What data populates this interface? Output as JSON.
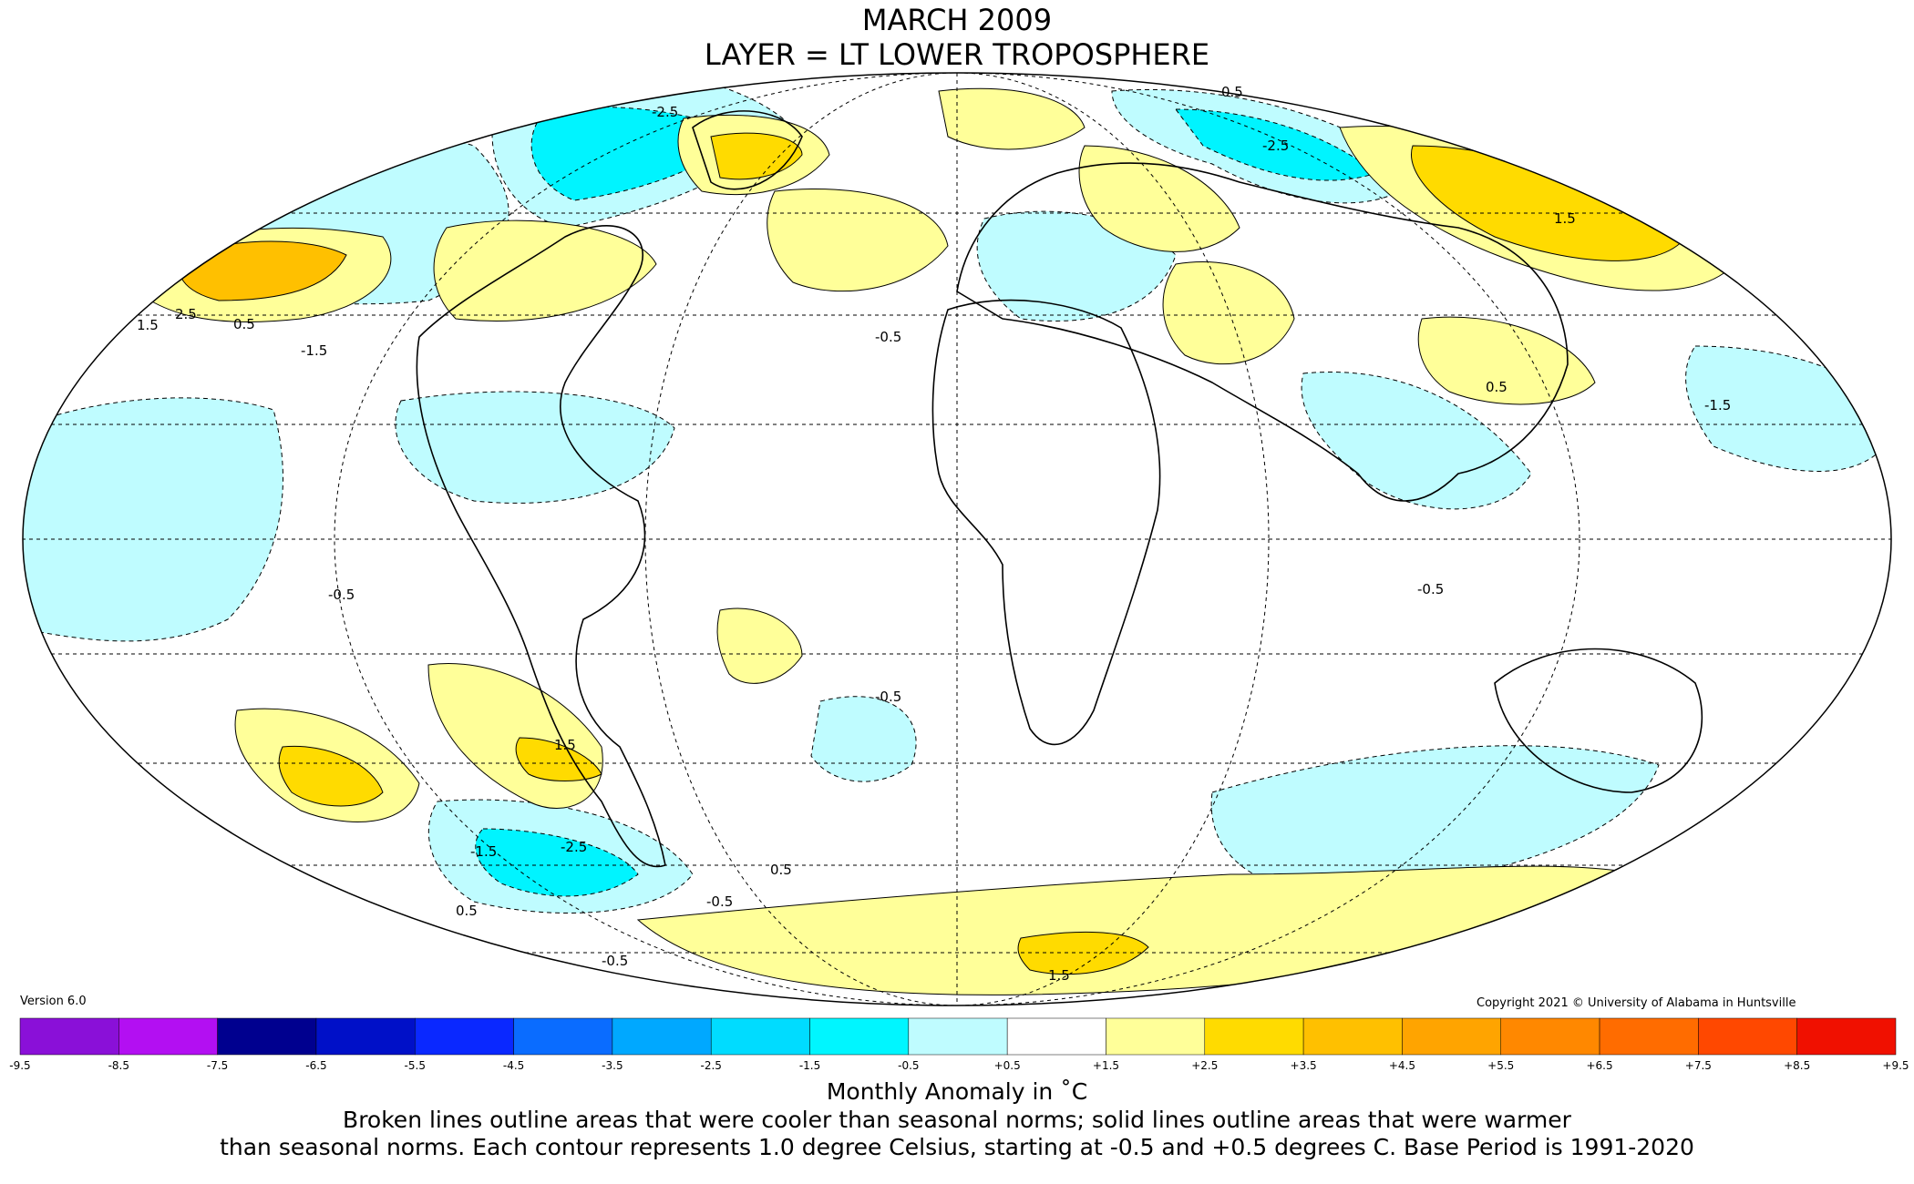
{
  "title": "MARCH 2009",
  "subtitle": "LAYER = LT LOWER TROPOSPHERE",
  "version": "Version 6.0",
  "copyright": "Copyright 2021 © University of Alabama in Huntsville",
  "colorbar": {
    "title": "Monthly Anomaly in ˚C",
    "ticks": [
      "-9.5",
      "-8.5",
      "-7.5",
      "-6.5",
      "-5.5",
      "-4.5",
      "-3.5",
      "-2.5",
      "-1.5",
      "-0.5",
      "+0.5",
      "+1.5",
      "+2.5",
      "+3.5",
      "+4.5",
      "+5.5",
      "+6.5",
      "+7.5",
      "+8.5",
      "+9.5"
    ],
    "colors": [
      "#3a0a5e",
      "#5f0a9e",
      "#8a10d8",
      "#b30ff2",
      "#00008f",
      "#0010c8",
      "#0a28ff",
      "#0a6cff",
      "#00a8ff",
      "#00dcff",
      "#00f6ff",
      "#bffcff",
      "#ffffff",
      "#ffff99",
      "#ffdb00",
      "#ffc000",
      "#ffa400",
      "#ff8800",
      "#ff6c00",
      "#ff4800",
      "#f01000",
      "#d00000",
      "#b20000"
    ]
  },
  "map_colors": {
    "ocean_neutral": "#ffffff",
    "cool_0_5": "#bffcff",
    "cool_1_5": "#00f4ff",
    "cool_2_5": "#00c8ff",
    "warm_0_5": "#ffff99",
    "warm_1_5": "#ffdb00",
    "warm_2_5": "#ffc000"
  },
  "contour_labels": [
    "0.5",
    "-0.5",
    "-1.5",
    "-2.5",
    "1.5",
    "2.5",
    "0.5",
    "-0.5",
    "-1.5",
    "-2.5",
    "1.5",
    "0.5",
    "-0.5",
    "1.5",
    "-0.5",
    "-1.5",
    "-2.5",
    "0.5",
    "-0.5",
    "0.5",
    "1.5",
    "-0.5"
  ],
  "footer": {
    "line1": "Broken lines outline areas that were cooler than seasonal norms; solid lines outline areas that were warmer",
    "line2": "than seasonal norms. Each contour represents 1.0 degree Celsius, starting at -0.5 and +0.5 degrees C. Base Period is 1991-2020"
  }
}
